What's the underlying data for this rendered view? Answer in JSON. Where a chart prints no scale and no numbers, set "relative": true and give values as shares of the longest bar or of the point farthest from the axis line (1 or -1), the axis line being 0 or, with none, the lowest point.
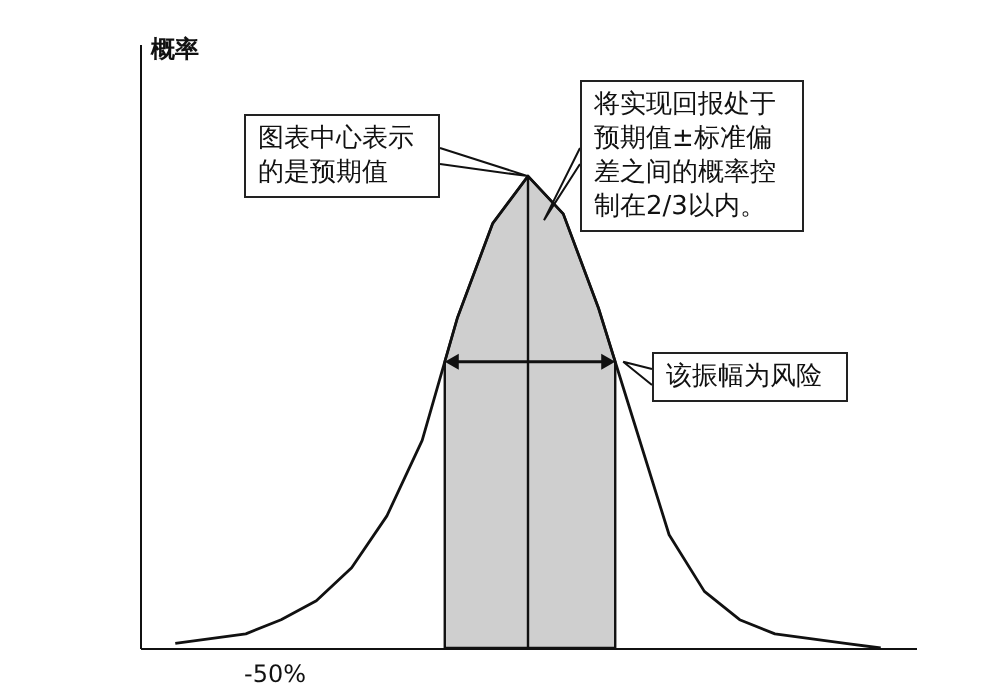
{
  "chart_data": {
    "type": "line",
    "relative": true,
    "ylabel": "概率",
    "categories": [
      null,
      null,
      null,
      null,
      null,
      null,
      null,
      null,
      null,
      null,
      null,
      null,
      null,
      null,
      null,
      null,
      null,
      null,
      null,
      null,
      null
    ],
    "series": [
      {
        "color": "#111111",
        "values": [
          0.01,
          0.02,
          0.03,
          0.06,
          0.1,
          0.17,
          0.28,
          0.44,
          0.7,
          0.9,
          1,
          0.92,
          0.72,
          0.48,
          0.24,
          0.12,
          0.06,
          0.03,
          0.02,
          0.01,
          0
        ]
      }
    ],
    "annotations": [
      "图表中心表示的是预期值",
      "将实现回报处于预期值±标准偏差之间的概率控制在2/3以内。",
      "该振幅为风险",
      "-50%"
    ],
    "grid": false,
    "marker": "none",
    "line_style": "solid"
  }
}
